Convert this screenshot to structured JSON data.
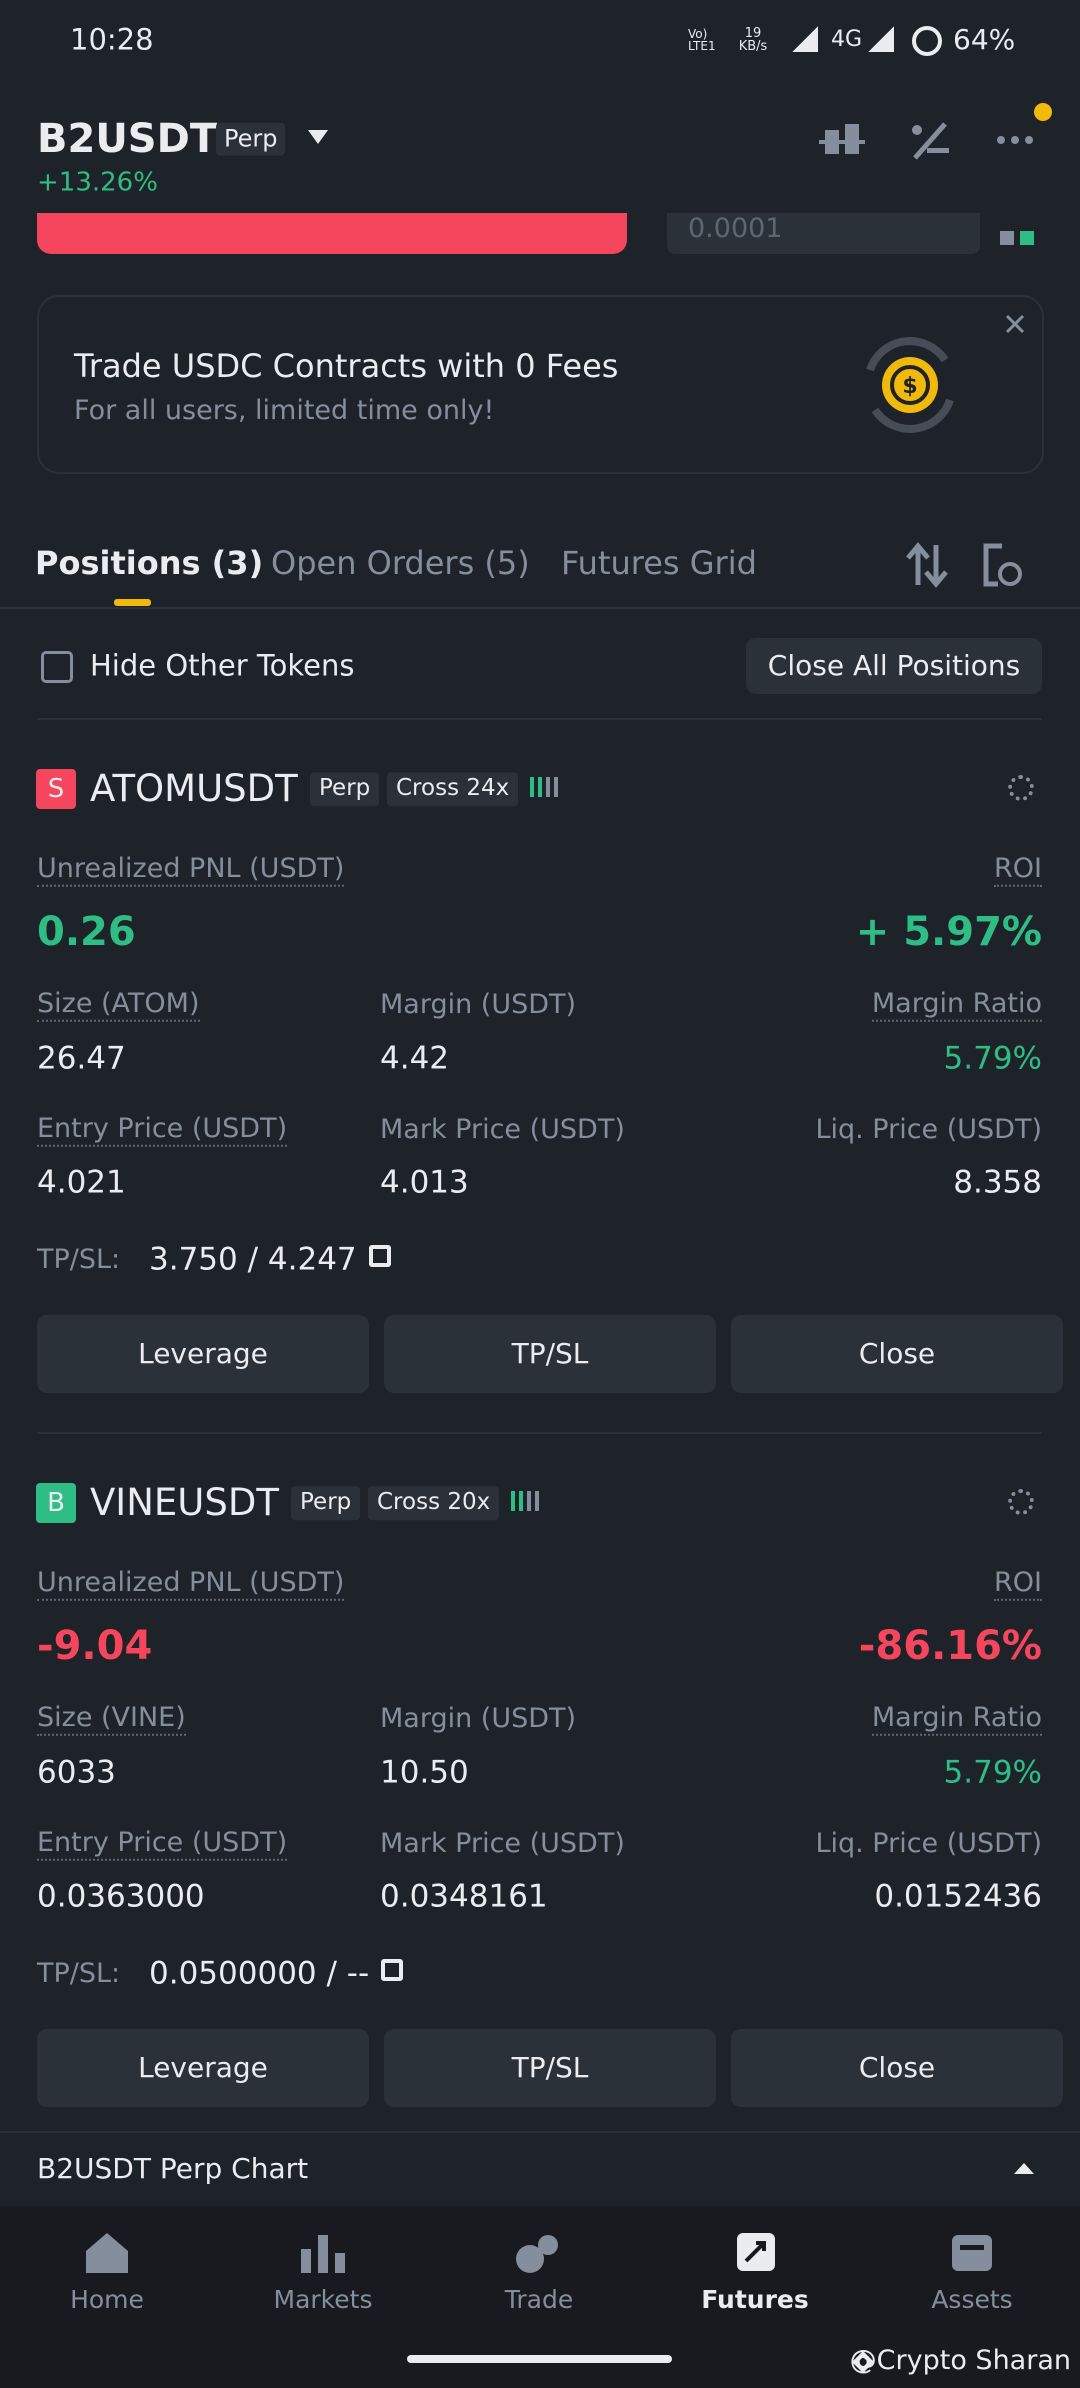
{
  "status_bar": {
    "time": "10:28",
    "volte": "Vo) LTE1",
    "speed": "19 KB/s",
    "network": "4G",
    "battery": "64%"
  },
  "header": {
    "symbol": "B2USDT",
    "tag": "Perp",
    "change": "+13.26%"
  },
  "order_form": {
    "quantity": "0.0001"
  },
  "banner": {
    "title": "Trade USDC Contracts with 0 Fees",
    "subtitle": "For all users, limited time only!"
  },
  "tabs": [
    "Positions (3)",
    "Open Orders (5)",
    "Futures Grid"
  ],
  "filter": {
    "label": "Hide Other Tokens",
    "close_all": "Close All Positions"
  },
  "positions": [
    {
      "badge": "S",
      "badge_color": "#f6465d",
      "symbol": "ATOMUSDT",
      "tags": [
        "Perp",
        "Cross 24x"
      ],
      "pnl_color": "#2ebd85",
      "fields": [
        {
          "label": "Unrealized PNL (USDT)",
          "value": "0.26"
        },
        {
          "label": "ROI",
          "value": "+ 5.97%"
        },
        {
          "label": "Size (ATOM)",
          "value": "26.47"
        },
        {
          "label": "Margin (USDT)",
          "value": "4.42"
        },
        {
          "label": "Margin Ratio",
          "value": "5.79%"
        },
        {
          "label": "Entry Price (USDT)",
          "value": "4.021"
        },
        {
          "label": "Mark Price (USDT)",
          "value": "4.013"
        },
        {
          "label": "Liq. Price (USDT)",
          "value": "8.358"
        }
      ],
      "tpsl": {
        "label": "TP/SL:",
        "value": "3.750 / 4.247"
      },
      "buttons": [
        "Leverage",
        "TP/SL",
        "Close"
      ]
    },
    {
      "badge": "B",
      "badge_color": "#2ebd85",
      "symbol": "VINEUSDT",
      "tags": [
        "Perp",
        "Cross 20x"
      ],
      "pnl_color": "#f6465d",
      "fields": [
        {
          "label": "Unrealized PNL (USDT)",
          "value": "-9.04"
        },
        {
          "label": "ROI",
          "value": "-86.16%"
        },
        {
          "label": "Size (VINE)",
          "value": "6033"
        },
        {
          "label": "Margin (USDT)",
          "value": "10.50"
        },
        {
          "label": "Margin Ratio",
          "value": "5.79%"
        },
        {
          "label": "Entry Price (USDT)",
          "value": "0.0363000"
        },
        {
          "label": "Mark Price (USDT)",
          "value": "0.0348161"
        },
        {
          "label": "Liq. Price (USDT)",
          "value": "0.0152436"
        }
      ],
      "tpsl": {
        "label": "TP/SL:",
        "value": "0.0500000 / --"
      },
      "buttons": [
        "Leverage",
        "TP/SL",
        "Close"
      ]
    }
  ],
  "chart_bar": {
    "title": "B2USDT Perp Chart"
  },
  "nav": [
    "Home",
    "Markets",
    "Trade",
    "Futures",
    "Assets"
  ],
  "watermark": "@Crypto Sharan"
}
